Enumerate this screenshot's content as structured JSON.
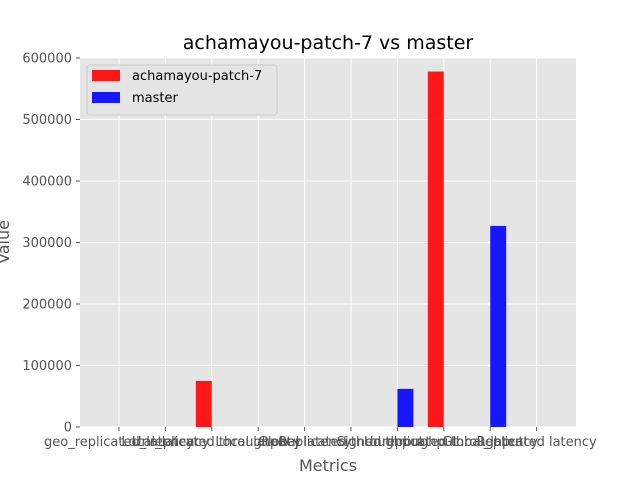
{
  "chart_data": {
    "type": "bar",
    "title": "achamayou-patch-7 vs master",
    "xlabel": "Metrics",
    "ylabel": "Value",
    "ylim": [
      0,
      600000
    ],
    "yticks": [
      0,
      100000,
      200000,
      300000,
      400000,
      500000,
      600000
    ],
    "grid": true,
    "legend_position": "upper-left",
    "categories": [
      "geo_replicated_latency",
      "Local_latency",
      "Unreplicated throughput",
      "Local latency",
      "Global latency",
      "Replicated throughput",
      "Signed throughput",
      "Unreplicated throughput",
      "Global_latency",
      "Replicated latency"
    ],
    "series": [
      {
        "name": "achamayou-patch-7",
        "color": "#ff0000",
        "values": [
          null,
          null,
          75000,
          null,
          null,
          null,
          null,
          578000,
          null,
          null
        ]
      },
      {
        "name": "master",
        "color": "#0000ff",
        "values": [
          null,
          null,
          null,
          null,
          null,
          null,
          62000,
          null,
          327000,
          null
        ]
      }
    ]
  }
}
